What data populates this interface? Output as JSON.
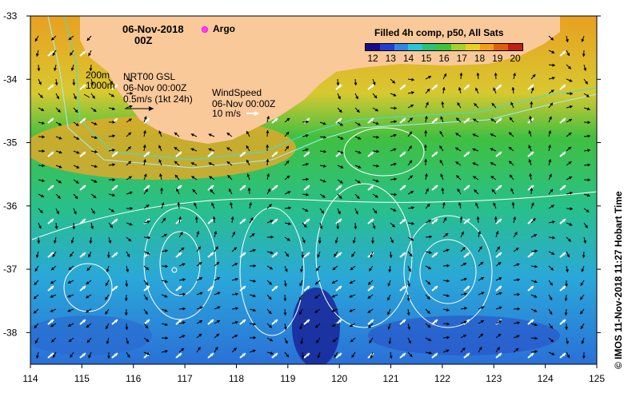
{
  "title": {
    "date": "06-Nov-2018",
    "hour": "00Z",
    "argo_label": "Argo"
  },
  "colorbar": {
    "title": "Filled 4h comp, p50, All Sats",
    "ticks": [
      "12",
      "13",
      "14",
      "15",
      "16",
      "17",
      "18",
      "19",
      "20"
    ],
    "colors": [
      "#1a0a8c",
      "#1f3fd0",
      "#2f86e8",
      "#27c6d8",
      "#25c47a",
      "#3cc43a",
      "#a7d02a",
      "#e8d020",
      "#f0a018",
      "#e06010",
      "#c02010"
    ]
  },
  "contours_label": {
    "depth1": "200m",
    "depth2": "1000m"
  },
  "current_legend": {
    "title": "NRT00 GSL",
    "time": "06-Nov 00:00Z",
    "scale": "0.5m/s (1kt 24h)"
  },
  "wind_legend": {
    "title": "WindSpeed",
    "time": "06-Nov 00:00Z",
    "scale": "10 m/s"
  },
  "credit": "© IMOS 11-Nov-2018 11:27 Hobart Time",
  "map": {
    "lon_range": [
      114,
      125
    ],
    "lat_range": [
      -38.5,
      -33
    ],
    "lon_ticks": [
      "114",
      "115",
      "116",
      "117",
      "118",
      "119",
      "120",
      "121",
      "122",
      "123",
      "124",
      "125"
    ],
    "lat_ticks": [
      "-33",
      "-34",
      "-35",
      "-36",
      "-37",
      "-38"
    ],
    "land_color": "#f9c99a",
    "coast_colors": {
      "warm": "#e88a20",
      "mid": "#f0b020",
      "pale": "#d8d040"
    }
  }
}
